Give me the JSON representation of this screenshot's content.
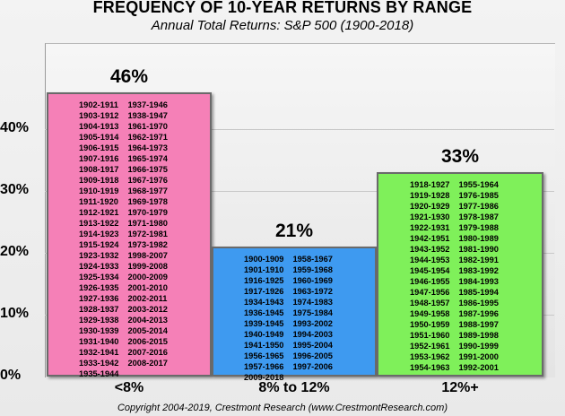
{
  "chart_data": {
    "type": "bar",
    "title": "FREQUENCY OF 10-YEAR RETURNS BY RANGE",
    "subtitle": "Annual Total Returns: S&P 500  (1900-2018)",
    "categories": [
      "<8%",
      "8%  to  12%",
      "12%+"
    ],
    "values": [
      46,
      21,
      33
    ],
    "value_labels": [
      "46%",
      "21%",
      "33%"
    ],
    "ylim": [
      0,
      50
    ],
    "yticks": [
      "0%",
      "10%",
      "20%",
      "30%",
      "40%"
    ],
    "grid": true,
    "colors": [
      "#f580b7",
      "#3e9af0",
      "#7ff05a"
    ],
    "periods": [
      [
        [
          "1902-1911",
          "1903-1912",
          "1904-1913",
          "1905-1914",
          "1906-1915",
          "1907-1916",
          "1908-1917",
          "1909-1918",
          "1910-1919",
          "1911-1920",
          "1912-1921",
          "1913-1922",
          "1914-1923",
          "1915-1924",
          "1923-1932",
          "1924-1933",
          "1925-1934",
          "1926-1935",
          "1927-1936",
          "1928-1937",
          "1929-1938",
          "1930-1939",
          "1931-1940",
          "1932-1941",
          "1933-1942",
          "1935-1944"
        ],
        [
          "1937-1946",
          "1938-1947",
          "1961-1970",
          "1962-1971",
          "1964-1973",
          "1965-1974",
          "1966-1975",
          "1967-1976",
          "1968-1977",
          "1969-1978",
          "1970-1979",
          "1971-1980",
          "1972-1981",
          "1973-1982",
          "1998-2007",
          "1999-2008",
          "2000-2009",
          "2001-2010",
          "2002-2011",
          "2003-2012",
          "2004-2013",
          "2005-2014",
          "2006-2015",
          "2007-2016",
          "2008-2017"
        ]
      ],
      [
        [
          "1900-1909",
          "1901-1910",
          "1916-1925",
          "1917-1926",
          "1934-1943",
          "1936-1945",
          "1939-1945",
          "1940-1949",
          "1941-1950",
          "1956-1965",
          "1957-1966",
          "2009-2018"
        ],
        [
          "1958-1967",
          "1959-1968",
          "1960-1969",
          "1963-1972",
          "1974-1983",
          "1975-1984",
          "1993-2002",
          "1994-2003",
          "1995-2004",
          "1996-2005",
          "1997-2006"
        ]
      ],
      [
        [
          "1918-1927",
          "1919-1928",
          "1920-1929",
          "1921-1930",
          "1922-1931",
          "1942-1951",
          "1943-1952",
          "1944-1953",
          "1945-1954",
          "1946-1955",
          "1947-1956",
          "1948-1957",
          "1949-1958",
          "1950-1959",
          "1951-1960",
          "1952-1961",
          "1953-1962",
          "1954-1963"
        ],
        [
          "1955-1964",
          "1976-1985",
          "1977-1986",
          "1978-1987",
          "1979-1988",
          "1980-1989",
          "1981-1990",
          "1982-1991",
          "1983-1992",
          "1984-1993",
          "1985-1994",
          "1986-1995",
          "1987-1996",
          "1988-1997",
          "1989-1998",
          "1990-1999",
          "1991-2000",
          "1992-2001"
        ]
      ]
    ]
  },
  "footer": "Copyright 2004-2019, Crestmont Research (www.CrestmontResearch.com)"
}
